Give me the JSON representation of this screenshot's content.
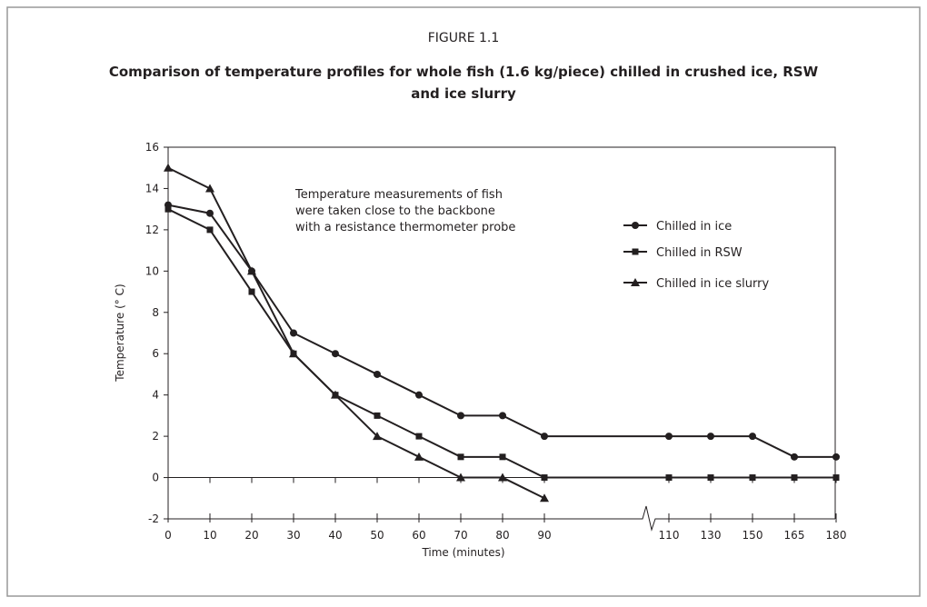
{
  "chart_data": {
    "type": "line",
    "figure_label": "FIGURE 1.1",
    "title": "Comparison of temperature profiles for whole fish (1.6 kg/piece) chilled in crushed ice, RSW",
    "title_line2": "and ice slurry",
    "annotation": [
      "Temperature measurements of fish",
      "were taken close to the backbone",
      "with a resistance thermometer probe"
    ],
    "x_label": "Time (minutes)",
    "y_label": "Temperature (° C)",
    "categories": [
      "0",
      "10",
      "20",
      "30",
      "40",
      "50",
      "60",
      "70",
      "80",
      "90",
      "110",
      "130",
      "150",
      "165",
      "180"
    ],
    "ylim": [
      -2,
      16
    ],
    "yticks": [
      -2,
      0,
      2,
      4,
      6,
      8,
      10,
      12,
      14,
      16
    ],
    "series": [
      {
        "name": "Chilled in ice",
        "color": "#231f20",
        "marker": "circle",
        "values": [
          13.2,
          12.8,
          10,
          7,
          6,
          5,
          4,
          3,
          3,
          2,
          2,
          2,
          2,
          1,
          1
        ]
      },
      {
        "name": "Chilled in RSW",
        "color": "#231f20",
        "marker": "square",
        "values": [
          13,
          12,
          9,
          6,
          4,
          3,
          2,
          1,
          1,
          0,
          0,
          0,
          0,
          0,
          0
        ]
      },
      {
        "name": "Chilled in ice slurry",
        "color": "#231f20",
        "marker": "triangle",
        "values": [
          15,
          14,
          10,
          6,
          4,
          2,
          1,
          0,
          0,
          -1,
          null,
          null,
          null,
          null,
          null
        ]
      }
    ]
  }
}
